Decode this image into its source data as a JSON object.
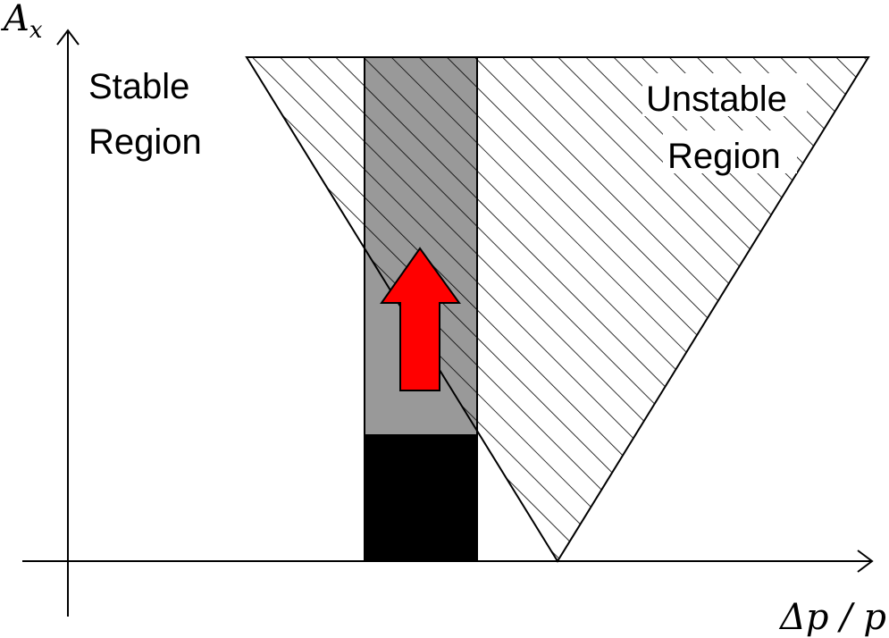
{
  "axes": {
    "y_label_main": "A",
    "y_label_sub": "x",
    "x_label": "Δp / p"
  },
  "regions": {
    "stable_line1": "Stable",
    "stable_line2": "Region",
    "unstable_line1": "Unstable",
    "unstable_line2": "Region"
  },
  "colors": {
    "axis": "#000000",
    "hatch": "#000000",
    "window_fill": "#999999",
    "core_fill": "#000000",
    "arrow_fill": "#ff0000",
    "arrow_stroke": "#000000"
  }
}
